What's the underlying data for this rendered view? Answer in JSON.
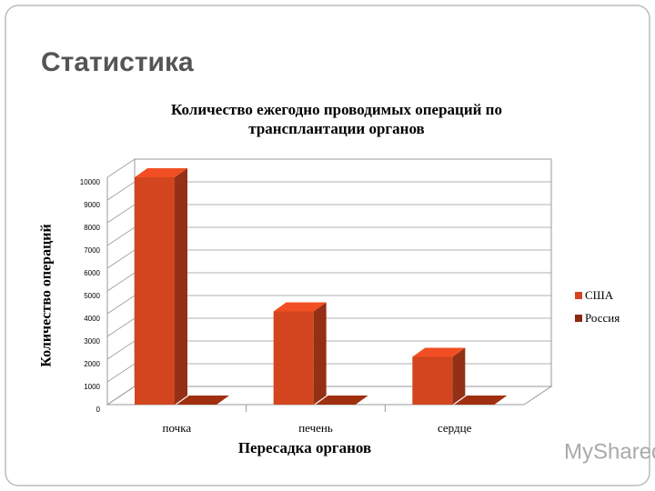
{
  "slide_title": "Статистика",
  "watermark": "MyShared",
  "chart_data": {
    "type": "bar3d",
    "title": "Количество ежегодно проводимых операций по трансплантации органов",
    "x_label": "Пересадка органов",
    "y_label": "Количество операций",
    "categories": [
      "почка",
      "печень",
      "сердце"
    ],
    "series": [
      {
        "name": "США",
        "color": "#d2451e",
        "values": [
          10000,
          4100,
          2100
        ]
      },
      {
        "name": "Россия",
        "color": "#8b2a0e",
        "values": [
          0,
          0,
          0
        ]
      }
    ],
    "ylim": [
      0,
      10000
    ],
    "yticks": [
      0,
      1000,
      2000,
      3000,
      4000,
      5000,
      6000,
      7000,
      8000,
      9000,
      10000
    ],
    "grid": true,
    "legend": "right"
  }
}
